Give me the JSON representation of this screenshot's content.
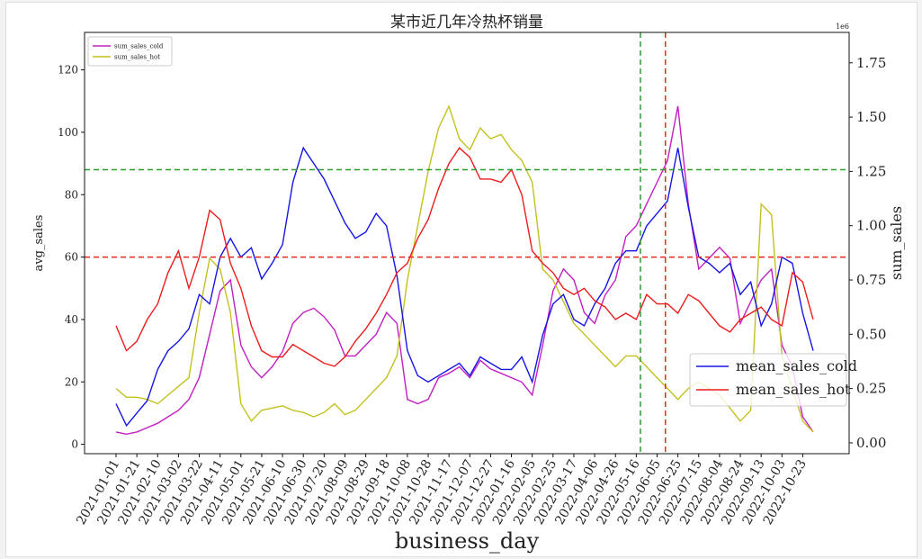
{
  "chart_data": {
    "type": "line",
    "title": "某市近几年冷热杯销量",
    "xlabel": "business_day",
    "ylabel_left": "avg_sales",
    "ylabel_right": "sum_sales",
    "right_axis_multiplier": "1e6",
    "x_ticks": [
      "2021-01-01",
      "2021-01-21",
      "2021-02-10",
      "2021-03-02",
      "2021-03-22",
      "2021-04-11",
      "2021-05-01",
      "2021-05-21",
      "2021-06-10",
      "2021-06-30",
      "2021-07-20",
      "2021-08-09",
      "2021-08-29",
      "2021-09-18",
      "2021-10-08",
      "2021-10-28",
      "2021-11-17",
      "2021-12-07",
      "2021-12-27",
      "2022-01-16",
      "2022-02-05",
      "2022-02-25",
      "2022-03-17",
      "2022-04-06",
      "2022-04-26",
      "2022-05-16",
      "2022-06-05",
      "2022-06-25",
      "2022-07-15",
      "2022-08-04",
      "2022-08-24",
      "2022-09-13",
      "2022-10-03",
      "2022-10-23"
    ],
    "y_left_ticks": [
      "0",
      "20",
      "40",
      "60",
      "80",
      "100",
      "120"
    ],
    "y_right_ticks": [
      "0.00",
      "0.25",
      "0.50",
      "0.75",
      "1.00",
      "1.25",
      "1.50",
      "1.75"
    ],
    "y_left_lim": [
      -3,
      132
    ],
    "y_right_lim": [
      -0.05,
      1.89
    ],
    "x_range": [
      "2021-01-01",
      "2022-11-02"
    ],
    "grid": false,
    "hlines": [
      {
        "axis": "left",
        "y": 88,
        "color": "#2ca02c",
        "style": "dashed"
      },
      {
        "axis": "left",
        "y": 60,
        "color": "#e8281c",
        "style": "dashed"
      }
    ],
    "vlines": [
      {
        "x": "2022-05-20",
        "color": "#2ca02c",
        "style": "dashed"
      },
      {
        "x": "2022-06-13",
        "color": "#e8281c",
        "style": "dashed"
      }
    ],
    "legend_right_axis": {
      "placement": "top-left",
      "entries": [
        {
          "name": "sum_sales_cold",
          "color": "#c21fc2"
        },
        {
          "name": "sum_sales_hot",
          "color": "#c4c11f"
        }
      ]
    },
    "legend_left_axis": {
      "placement": "center-right",
      "entries": [
        {
          "name": "mean_sales_cold",
          "color": "#1515e6"
        },
        {
          "name": "mean_sales_hot",
          "color": "#ee1c1c"
        }
      ]
    },
    "series": [
      {
        "name": "mean_sales_cold",
        "axis": "left",
        "color": "#1515e6",
        "x": [
          "2021-01-01",
          "2021-01-11",
          "2021-01-21",
          "2021-01-31",
          "2021-02-10",
          "2021-02-20",
          "2021-03-02",
          "2021-03-12",
          "2021-03-22",
          "2021-04-01",
          "2021-04-11",
          "2021-04-21",
          "2021-05-01",
          "2021-05-11",
          "2021-05-21",
          "2021-05-31",
          "2021-06-10",
          "2021-06-20",
          "2021-06-30",
          "2021-07-10",
          "2021-07-20",
          "2021-07-30",
          "2021-08-09",
          "2021-08-19",
          "2021-08-29",
          "2021-09-08",
          "2021-09-18",
          "2021-09-28",
          "2021-10-08",
          "2021-10-18",
          "2021-10-28",
          "2021-11-07",
          "2021-11-17",
          "2021-11-27",
          "2021-12-07",
          "2021-12-17",
          "2021-12-27",
          "2022-01-06",
          "2022-01-16",
          "2022-01-26",
          "2022-02-05",
          "2022-02-15",
          "2022-02-25",
          "2022-03-07",
          "2022-03-17",
          "2022-03-27",
          "2022-04-06",
          "2022-04-16",
          "2022-04-26",
          "2022-05-06",
          "2022-05-16",
          "2022-05-26",
          "2022-06-05",
          "2022-06-15",
          "2022-06-25",
          "2022-07-05",
          "2022-07-15",
          "2022-07-25",
          "2022-08-04",
          "2022-08-14",
          "2022-08-24",
          "2022-09-03",
          "2022-09-13",
          "2022-09-23",
          "2022-10-03",
          "2022-10-13",
          "2022-10-23",
          "2022-11-02"
        ],
        "y": [
          13,
          6,
          10,
          14,
          24,
          30,
          33,
          37,
          48,
          45,
          60,
          66,
          60,
          63,
          53,
          58,
          64,
          84,
          95,
          90,
          85,
          78,
          71,
          66,
          68,
          74,
          70,
          54,
          30,
          22,
          20,
          22,
          24,
          26,
          22,
          28,
          26,
          24,
          24,
          28,
          20,
          35,
          45,
          48,
          40,
          38,
          45,
          50,
          58,
          62,
          62,
          70,
          74,
          78,
          95,
          76,
          60,
          58,
          55,
          58,
          48,
          52,
          38,
          45,
          60,
          58,
          42,
          30
        ]
      },
      {
        "name": "mean_sales_hot",
        "axis": "left",
        "color": "#ee1c1c",
        "x": [
          "2021-01-01",
          "2021-01-11",
          "2021-01-21",
          "2021-01-31",
          "2021-02-10",
          "2021-02-20",
          "2021-03-02",
          "2021-03-12",
          "2021-03-22",
          "2021-04-01",
          "2021-04-11",
          "2021-04-21",
          "2021-05-01",
          "2021-05-11",
          "2021-05-21",
          "2021-05-31",
          "2021-06-10",
          "2021-06-20",
          "2021-06-30",
          "2021-07-10",
          "2021-07-20",
          "2021-07-30",
          "2021-08-09",
          "2021-08-19",
          "2021-08-29",
          "2021-09-08",
          "2021-09-18",
          "2021-09-28",
          "2021-10-08",
          "2021-10-18",
          "2021-10-28",
          "2021-11-07",
          "2021-11-17",
          "2021-11-27",
          "2021-12-07",
          "2021-12-17",
          "2021-12-27",
          "2022-01-06",
          "2022-01-16",
          "2022-01-26",
          "2022-02-05",
          "2022-02-15",
          "2022-02-25",
          "2022-03-07",
          "2022-03-17",
          "2022-03-27",
          "2022-04-06",
          "2022-04-16",
          "2022-04-26",
          "2022-05-06",
          "2022-05-16",
          "2022-05-26",
          "2022-06-05",
          "2022-06-15",
          "2022-06-25",
          "2022-07-05",
          "2022-07-15",
          "2022-07-25",
          "2022-08-04",
          "2022-08-14",
          "2022-08-24",
          "2022-09-03",
          "2022-09-13",
          "2022-09-23",
          "2022-10-03",
          "2022-10-13",
          "2022-10-23",
          "2022-11-02"
        ],
        "y": [
          38,
          30,
          33,
          40,
          45,
          55,
          62,
          50,
          60,
          75,
          72,
          58,
          50,
          38,
          30,
          28,
          28,
          32,
          30,
          28,
          26,
          25,
          28,
          33,
          37,
          42,
          48,
          55,
          58,
          66,
          72,
          82,
          90,
          95,
          92,
          85,
          85,
          84,
          88,
          80,
          62,
          58,
          55,
          50,
          48,
          50,
          46,
          44,
          40,
          42,
          40,
          48,
          45,
          45,
          42,
          48,
          46,
          42,
          38,
          36,
          40,
          42,
          44,
          40,
          38,
          55,
          52,
          40
        ]
      },
      {
        "name": "sum_sales_cold",
        "axis": "right",
        "color": "#c21fc2",
        "x": [
          "2021-01-01",
          "2021-01-11",
          "2021-01-21",
          "2021-01-31",
          "2021-02-10",
          "2021-02-20",
          "2021-03-02",
          "2021-03-12",
          "2021-03-22",
          "2021-04-01",
          "2021-04-11",
          "2021-04-21",
          "2021-05-01",
          "2021-05-11",
          "2021-05-21",
          "2021-05-31",
          "2021-06-10",
          "2021-06-20",
          "2021-06-30",
          "2021-07-10",
          "2021-07-20",
          "2021-07-30",
          "2021-08-09",
          "2021-08-19",
          "2021-08-29",
          "2021-09-08",
          "2021-09-18",
          "2021-09-28",
          "2021-10-08",
          "2021-10-18",
          "2021-10-28",
          "2021-11-07",
          "2021-11-17",
          "2021-11-27",
          "2021-12-07",
          "2021-12-17",
          "2021-12-27",
          "2022-01-06",
          "2022-01-16",
          "2022-01-26",
          "2022-02-05",
          "2022-02-15",
          "2022-02-25",
          "2022-03-07",
          "2022-03-17",
          "2022-03-27",
          "2022-04-06",
          "2022-04-16",
          "2022-04-26",
          "2022-05-06",
          "2022-05-16",
          "2022-05-26",
          "2022-06-05",
          "2022-06-15",
          "2022-06-25",
          "2022-07-05",
          "2022-07-15",
          "2022-07-25",
          "2022-08-04",
          "2022-08-14",
          "2022-08-24",
          "2022-09-03",
          "2022-09-13",
          "2022-09-23",
          "2022-10-03",
          "2022-10-13",
          "2022-10-23",
          "2022-11-02"
        ],
        "y": [
          0.05,
          0.04,
          0.05,
          0.07,
          0.09,
          0.12,
          0.15,
          0.2,
          0.3,
          0.5,
          0.7,
          0.75,
          0.45,
          0.35,
          0.3,
          0.35,
          0.42,
          0.55,
          0.6,
          0.62,
          0.58,
          0.52,
          0.4,
          0.4,
          0.45,
          0.5,
          0.6,
          0.55,
          0.2,
          0.18,
          0.2,
          0.3,
          0.32,
          0.35,
          0.3,
          0.38,
          0.34,
          0.32,
          0.3,
          0.28,
          0.22,
          0.45,
          0.7,
          0.8,
          0.75,
          0.6,
          0.55,
          0.68,
          0.75,
          0.95,
          1.0,
          1.1,
          1.2,
          1.3,
          1.55,
          1.1,
          0.8,
          0.85,
          0.9,
          0.85,
          0.55,
          0.65,
          0.75,
          0.8,
          0.45,
          0.35,
          0.12,
          0.05
        ]
      },
      {
        "name": "sum_sales_hot",
        "axis": "right",
        "color": "#c4c11f",
        "x": [
          "2021-01-01",
          "2021-01-11",
          "2021-01-21",
          "2021-01-31",
          "2021-02-10",
          "2021-02-20",
          "2021-03-02",
          "2021-03-12",
          "2021-03-22",
          "2021-04-01",
          "2021-04-11",
          "2021-04-21",
          "2021-05-01",
          "2021-05-11",
          "2021-05-21",
          "2021-05-31",
          "2021-06-10",
          "2021-06-20",
          "2021-06-30",
          "2021-07-10",
          "2021-07-20",
          "2021-07-30",
          "2021-08-09",
          "2021-08-19",
          "2021-08-29",
          "2021-09-08",
          "2021-09-18",
          "2021-09-28",
          "2021-10-08",
          "2021-10-18",
          "2021-10-28",
          "2021-11-07",
          "2021-11-17",
          "2021-11-27",
          "2021-12-07",
          "2021-12-17",
          "2021-12-27",
          "2022-01-06",
          "2022-01-16",
          "2022-01-26",
          "2022-02-05",
          "2022-02-15",
          "2022-02-25",
          "2022-03-07",
          "2022-03-17",
          "2022-03-27",
          "2022-04-06",
          "2022-04-16",
          "2022-04-26",
          "2022-05-06",
          "2022-05-16",
          "2022-05-26",
          "2022-06-05",
          "2022-06-15",
          "2022-06-25",
          "2022-07-05",
          "2022-07-15",
          "2022-07-25",
          "2022-08-04",
          "2022-08-14",
          "2022-08-24",
          "2022-09-03",
          "2022-09-13",
          "2022-09-23",
          "2022-10-03",
          "2022-10-13",
          "2022-10-23",
          "2022-11-02"
        ],
        "y": [
          0.25,
          0.21,
          0.21,
          0.2,
          0.18,
          0.22,
          0.26,
          0.3,
          0.6,
          0.85,
          0.8,
          0.6,
          0.18,
          0.1,
          0.15,
          0.16,
          0.17,
          0.15,
          0.14,
          0.12,
          0.14,
          0.18,
          0.13,
          0.15,
          0.2,
          0.25,
          0.3,
          0.4,
          0.75,
          1.0,
          1.25,
          1.45,
          1.55,
          1.4,
          1.35,
          1.45,
          1.4,
          1.42,
          1.35,
          1.3,
          1.2,
          0.8,
          0.75,
          0.65,
          0.55,
          0.5,
          0.45,
          0.4,
          0.35,
          0.4,
          0.4,
          0.35,
          0.3,
          0.25,
          0.2,
          0.25,
          0.28,
          0.25,
          0.22,
          0.16,
          0.1,
          0.15,
          1.1,
          1.05,
          0.4,
          0.25,
          0.1,
          0.05
        ]
      }
    ]
  }
}
